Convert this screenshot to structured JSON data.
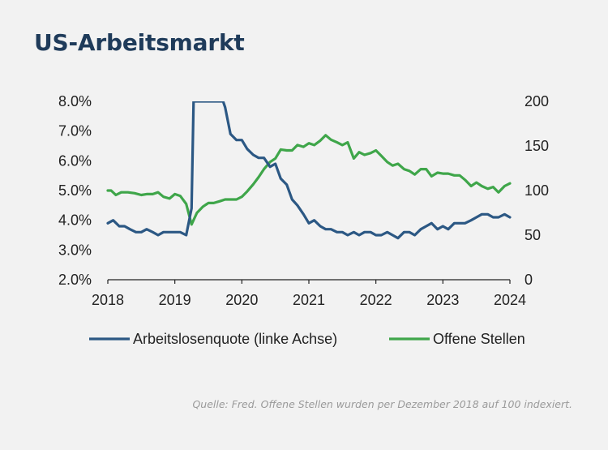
{
  "header": {
    "title": "US-Arbeitsmarkt"
  },
  "footer": {
    "source": "Quelle: Fred. Offene Stellen wurden per Dezember 2018 auf 100 indexiert."
  },
  "chart_data": {
    "type": "line",
    "title": "US-Arbeitsmarkt",
    "xlim": [
      2018,
      2024
    ],
    "x_ticks": [
      "2018",
      "2019",
      "2020",
      "2021",
      "2022",
      "2023",
      "2024"
    ],
    "y_left": {
      "lim": [
        2.0,
        8.0
      ],
      "ticks": [
        "2.0%",
        "3.0%",
        "4.0%",
        "5.0%",
        "6.0%",
        "7.0%",
        "8.0%"
      ]
    },
    "y_right": {
      "lim": [
        0,
        200
      ],
      "ticks": [
        "0",
        "50",
        "100",
        "150",
        "200"
      ]
    },
    "legend_position": "bottom",
    "series": [
      {
        "name": "Arbeitslosenquote (linke Achse)",
        "axis": "left",
        "color": "#2c5884",
        "points": [
          [
            2018.0,
            3.9
          ],
          [
            2018.08,
            4.0
          ],
          [
            2018.17,
            3.8
          ],
          [
            2018.25,
            3.8
          ],
          [
            2018.33,
            3.7
          ],
          [
            2018.42,
            3.6
          ],
          [
            2018.5,
            3.6
          ],
          [
            2018.58,
            3.7
          ],
          [
            2018.67,
            3.6
          ],
          [
            2018.75,
            3.5
          ],
          [
            2018.83,
            3.6
          ],
          [
            2018.92,
            3.6
          ],
          [
            2019.0,
            3.6
          ],
          [
            2019.08,
            3.6
          ],
          [
            2019.17,
            3.5
          ],
          [
            2019.25,
            4.4
          ],
          [
            2019.28,
            8.0
          ],
          [
            2019.72,
            8.0
          ],
          [
            2019.75,
            7.8
          ],
          [
            2019.83,
            6.9
          ],
          [
            2019.92,
            6.7
          ],
          [
            2020.0,
            6.7
          ],
          [
            2020.08,
            6.4
          ],
          [
            2020.17,
            6.2
          ],
          [
            2020.25,
            6.1
          ],
          [
            2020.33,
            6.1
          ],
          [
            2020.42,
            5.8
          ],
          [
            2020.5,
            5.9
          ],
          [
            2020.58,
            5.4
          ],
          [
            2020.67,
            5.2
          ],
          [
            2020.75,
            4.7
          ],
          [
            2020.83,
            4.5
          ],
          [
            2020.92,
            4.2
          ],
          [
            2021.0,
            3.9
          ],
          [
            2021.08,
            4.0
          ],
          [
            2021.17,
            3.8
          ],
          [
            2021.25,
            3.7
          ],
          [
            2021.33,
            3.7
          ],
          [
            2021.42,
            3.6
          ],
          [
            2021.5,
            3.6
          ],
          [
            2021.58,
            3.5
          ],
          [
            2021.67,
            3.6
          ],
          [
            2021.75,
            3.5
          ],
          [
            2021.83,
            3.6
          ],
          [
            2021.92,
            3.6
          ],
          [
            2022.0,
            3.5
          ],
          [
            2022.08,
            3.5
          ],
          [
            2022.17,
            3.6
          ],
          [
            2022.25,
            3.5
          ],
          [
            2022.33,
            3.4
          ],
          [
            2022.42,
            3.6
          ],
          [
            2022.5,
            3.6
          ],
          [
            2022.58,
            3.5
          ],
          [
            2022.67,
            3.7
          ],
          [
            2022.75,
            3.8
          ],
          [
            2022.83,
            3.9
          ],
          [
            2022.92,
            3.7
          ],
          [
            2023.0,
            3.8
          ],
          [
            2023.08,
            3.7
          ],
          [
            2023.17,
            3.9
          ],
          [
            2023.25,
            3.9
          ],
          [
            2023.33,
            3.9
          ],
          [
            2023.42,
            4.0
          ],
          [
            2023.5,
            4.1
          ],
          [
            2023.58,
            4.2
          ],
          [
            2023.67,
            4.2
          ],
          [
            2023.75,
            4.1
          ],
          [
            2023.83,
            4.1
          ],
          [
            2023.92,
            4.2
          ],
          [
            2024.0,
            4.1
          ]
        ]
      },
      {
        "name": "Offene Stellen",
        "axis": "right",
        "color": "#3fa64a",
        "points": [
          [
            2018.0,
            100
          ],
          [
            2018.05,
            100
          ],
          [
            2018.12,
            95
          ],
          [
            2018.2,
            98
          ],
          [
            2018.3,
            98
          ],
          [
            2018.4,
            97
          ],
          [
            2018.5,
            95
          ],
          [
            2018.58,
            96
          ],
          [
            2018.67,
            96
          ],
          [
            2018.75,
            98
          ],
          [
            2018.83,
            93
          ],
          [
            2018.92,
            91
          ],
          [
            2019.0,
            96
          ],
          [
            2019.08,
            94
          ],
          [
            2019.17,
            85
          ],
          [
            2019.25,
            62
          ],
          [
            2019.33,
            75
          ],
          [
            2019.42,
            82
          ],
          [
            2019.5,
            86
          ],
          [
            2019.58,
            86
          ],
          [
            2019.67,
            88
          ],
          [
            2019.75,
            90
          ],
          [
            2019.83,
            90
          ],
          [
            2019.92,
            90
          ],
          [
            2020.0,
            93
          ],
          [
            2020.08,
            99
          ],
          [
            2020.17,
            107
          ],
          [
            2020.25,
            115
          ],
          [
            2020.33,
            124
          ],
          [
            2020.42,
            132
          ],
          [
            2020.5,
            136
          ],
          [
            2020.58,
            146
          ],
          [
            2020.67,
            145
          ],
          [
            2020.75,
            145
          ],
          [
            2020.83,
            151
          ],
          [
            2020.92,
            149
          ],
          [
            2021.0,
            153
          ],
          [
            2021.08,
            151
          ],
          [
            2021.17,
            156
          ],
          [
            2021.25,
            162
          ],
          [
            2021.33,
            157
          ],
          [
            2021.42,
            154
          ],
          [
            2021.5,
            151
          ],
          [
            2021.58,
            154
          ],
          [
            2021.67,
            136
          ],
          [
            2021.75,
            143
          ],
          [
            2021.83,
            140
          ],
          [
            2021.92,
            142
          ],
          [
            2022.0,
            145
          ],
          [
            2022.08,
            139
          ],
          [
            2022.17,
            132
          ],
          [
            2022.25,
            128
          ],
          [
            2022.33,
            130
          ],
          [
            2022.42,
            124
          ],
          [
            2022.5,
            122
          ],
          [
            2022.58,
            118
          ],
          [
            2022.67,
            124
          ],
          [
            2022.75,
            124
          ],
          [
            2022.83,
            116
          ],
          [
            2022.92,
            120
          ],
          [
            2023.0,
            119
          ],
          [
            2023.08,
            119
          ],
          [
            2023.17,
            117
          ],
          [
            2023.25,
            117
          ],
          [
            2023.33,
            112
          ],
          [
            2023.42,
            105
          ],
          [
            2023.5,
            109
          ],
          [
            2023.58,
            105
          ],
          [
            2023.67,
            102
          ],
          [
            2023.75,
            104
          ],
          [
            2023.83,
            98
          ],
          [
            2023.92,
            105
          ],
          [
            2024.0,
            108
          ]
        ]
      }
    ]
  }
}
